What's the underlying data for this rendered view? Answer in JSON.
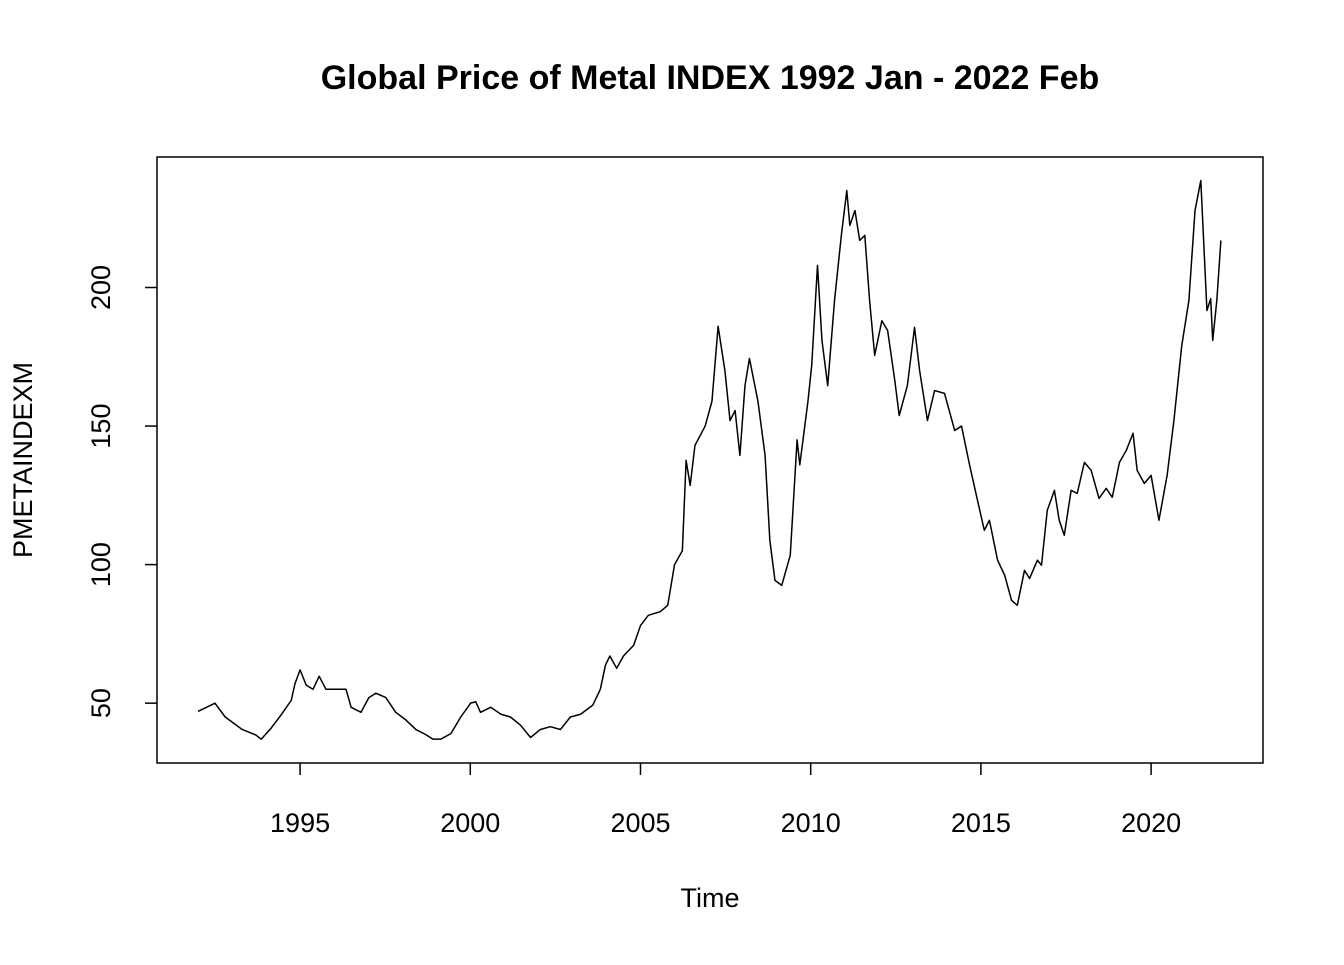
{
  "chart_data": {
    "type": "line",
    "title": "Global Price of Metal INDEX 1992 Jan - 2022 Feb",
    "x_label": "Time",
    "y_label": "PMETAINDEXM",
    "color": "#000000",
    "x": [
      1992.0,
      1992.5,
      1992.8,
      1993.3,
      1993.7,
      1993.86,
      1994.15,
      1994.44,
      1994.74,
      1994.85,
      1995.0,
      1995.18,
      1995.38,
      1995.56,
      1995.76,
      1996.06,
      1996.35,
      1996.5,
      1996.79,
      1997.02,
      1997.23,
      1997.52,
      1997.81,
      1998.1,
      1998.4,
      1998.7,
      1998.9,
      1999.13,
      1999.43,
      1999.72,
      2000.01,
      2000.16,
      2000.3,
      2000.6,
      2000.9,
      2001.18,
      2001.48,
      2001.77,
      2002.06,
      2002.35,
      2002.65,
      2002.94,
      2003.24,
      2003.6,
      2003.82,
      2003.97,
      2004.1,
      2004.3,
      2004.5,
      2004.8,
      2005.0,
      2005.23,
      2005.58,
      2005.8,
      2006.0,
      2006.23,
      2006.34,
      2006.46,
      2006.6,
      2006.9,
      2007.1,
      2007.28,
      2007.48,
      2007.63,
      2007.78,
      2007.92,
      2008.07,
      2008.2,
      2008.45,
      2008.66,
      2008.8,
      2008.95,
      2009.15,
      2009.4,
      2009.6,
      2009.68,
      2009.92,
      2010.03,
      2010.2,
      2010.33,
      2010.5,
      2010.7,
      2010.9,
      2011.06,
      2011.15,
      2011.3,
      2011.44,
      2011.59,
      2011.73,
      2011.88,
      2012.09,
      2012.26,
      2012.47,
      2012.6,
      2012.84,
      2013.05,
      2013.2,
      2013.43,
      2013.64,
      2013.93,
      2014.23,
      2014.43,
      2014.67,
      2014.9,
      2015.1,
      2015.25,
      2015.49,
      2015.7,
      2015.9,
      2016.07,
      2016.28,
      2016.43,
      2016.66,
      2016.78,
      2016.95,
      2017.16,
      2017.3,
      2017.45,
      2017.65,
      2017.83,
      2018.04,
      2018.24,
      2018.47,
      2018.68,
      2018.86,
      2019.07,
      2019.27,
      2019.47,
      2019.59,
      2019.8,
      2020.0,
      2020.23,
      2020.47,
      2020.67,
      2020.9,
      2021.11,
      2021.29,
      2021.46,
      2021.64,
      2021.75,
      2021.81,
      2021.93,
      2022.05
    ],
    "values": [
      47,
      50,
      45,
      40.5,
      38.5,
      37,
      41,
      45.7,
      51,
      57,
      62,
      56.5,
      55,
      59.7,
      55,
      55,
      55,
      48.5,
      46.7,
      52,
      53.6,
      52,
      46.7,
      44,
      40.5,
      38.6,
      37,
      37,
      39,
      45,
      50,
      50.5,
      46.7,
      48.5,
      46,
      45,
      42,
      37.6,
      40.5,
      41.5,
      40.5,
      45,
      46,
      49.3,
      55,
      63.7,
      67,
      62.6,
      67,
      70.9,
      78,
      81.7,
      83,
      85.3,
      100,
      105,
      137.6,
      128.6,
      143,
      150,
      159,
      186,
      170,
      152,
      155.6,
      139.4,
      164.6,
      174.4,
      159,
      139.4,
      108.8,
      94.3,
      92.5,
      103.4,
      145,
      136,
      159,
      171.9,
      208,
      181,
      164.6,
      195.3,
      218.8,
      235,
      222.4,
      227.8,
      217,
      218.8,
      195.3,
      175.5,
      188,
      184.5,
      166.5,
      153.8,
      164.6,
      185.6,
      170,
      152,
      162.8,
      161.8,
      148.4,
      150,
      135.8,
      123.2,
      112.4,
      116,
      101.6,
      96.1,
      87.1,
      85.3,
      97.9,
      95,
      101.6,
      99.8,
      119.6,
      126.8,
      116,
      110.6,
      126.8,
      125.7,
      136.9,
      134,
      123.9,
      127.5,
      124.3,
      136.9,
      141.2,
      147.4,
      134,
      129.3,
      132.2,
      116,
      132.2,
      152,
      179,
      195.3,
      227.8,
      238.6,
      191.7,
      196,
      180.9,
      195.3,
      217
    ],
    "xlim": [
      1990.797,
      2023.287
    ],
    "ylim": [
      28.4,
      247.1
    ],
    "xticks": [
      1995,
      2000,
      2005,
      2010,
      2015,
      2020
    ],
    "yticks": [
      50,
      100,
      150,
      200
    ]
  }
}
